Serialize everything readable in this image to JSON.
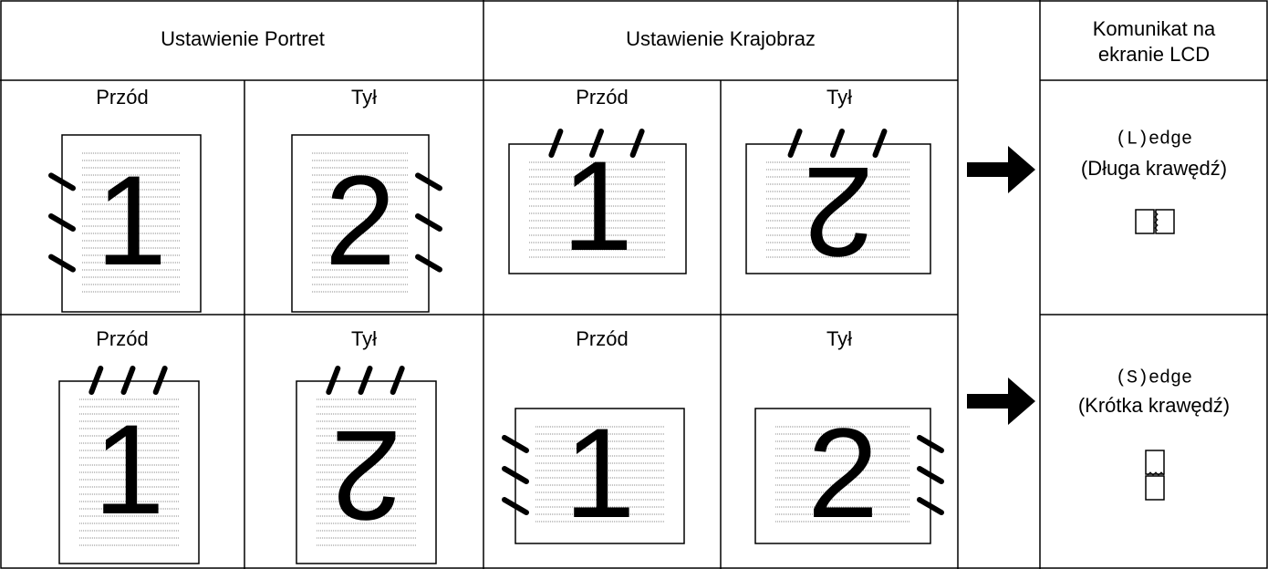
{
  "header": {
    "portrait": "Ustawienie Portret",
    "landscape": "Ustawienie Krajobraz",
    "lcd": "Komunikat na ekranie LCD"
  },
  "rows": [
    {
      "cells": [
        {
          "label": "Przód",
          "page": "1"
        },
        {
          "label": "Tył",
          "page": "2"
        },
        {
          "label": "Przód",
          "page": "1"
        },
        {
          "label": "Tył",
          "page": "2"
        }
      ],
      "lcd_code": "(L)edge",
      "lcd_text": "(Długa krawędź)"
    },
    {
      "cells": [
        {
          "label": "Przód",
          "page": "1"
        },
        {
          "label": "Tył",
          "page": "2"
        },
        {
          "label": "Przód",
          "page": "1"
        },
        {
          "label": "Tył",
          "page": "2"
        }
      ],
      "lcd_code": "(S)edge",
      "lcd_text": "(Krótka krawędź)"
    }
  ]
}
